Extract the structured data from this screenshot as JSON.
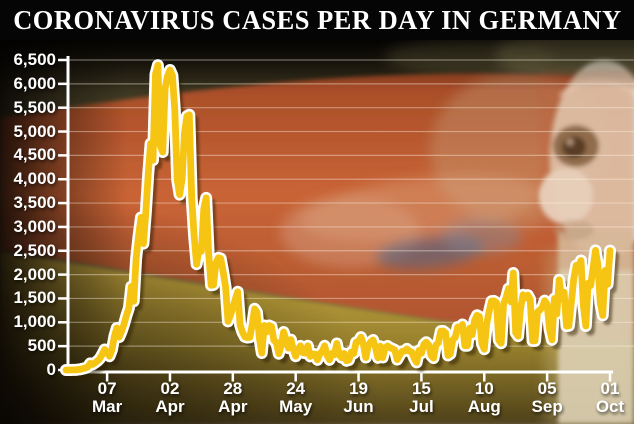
{
  "title": "CORONAVIRUS CASES PER DAY IN GERMANY",
  "colors": {
    "title_bg": "#050505",
    "title_text": "#FFFFFF",
    "line": "#F6C513",
    "line_outline": "#FFFFFF",
    "line_shadow": "#2B1A06",
    "axis": "#FFFFFF",
    "grid": "rgba(255,246,230,0.4)",
    "flag_black_band": "#4A4229",
    "flag_red_band": "#C05A30",
    "flag_gold_band": "#C3A33C"
  },
  "chart_data": {
    "type": "line",
    "title": "Coronavirus cases per day in Germany",
    "xlabel": "",
    "ylabel": "",
    "ylim": [
      0,
      6500
    ],
    "y_tick_step": 500,
    "grid": true,
    "y_tick_labels": [
      "0",
      "500",
      "1,000",
      "1,500",
      "2,000",
      "2,500",
      "3,000",
      "3,500",
      "4,000",
      "4,500",
      "5,000",
      "5,500",
      "6,000",
      "6,500"
    ],
    "x_ticks": [
      {
        "day": "07",
        "month": "Mar",
        "index": 17
      },
      {
        "day": "02",
        "month": "Apr",
        "index": 43
      },
      {
        "day": "28",
        "month": "Apr",
        "index": 69
      },
      {
        "day": "24",
        "month": "May",
        "index": 95
      },
      {
        "day": "19",
        "month": "Jun",
        "index": 121
      },
      {
        "day": "15",
        "month": "Jul",
        "index": 147
      },
      {
        "day": "10",
        "month": "Aug",
        "index": 173
      },
      {
        "day": "05",
        "month": "Sep",
        "index": 199
      },
      {
        "day": "01",
        "month": "Oct",
        "index": 225
      }
    ],
    "tick_spacing_days": 26,
    "series": [
      {
        "name": "daily_new_cases",
        "color": "#F6C513",
        "values": [
          0,
          0,
          0,
          2,
          2,
          10,
          14,
          29,
          39,
          66,
          138,
          117,
          150,
          188,
          240,
          330,
          430,
          380,
          290,
          420,
          706,
          880,
          690,
          810,
          960,
          1140,
          1300,
          1750,
          1440,
          2330,
          2800,
          3200,
          2650,
          3300,
          4100,
          4750,
          4400,
          6200,
          6390,
          4700,
          4570,
          5900,
          6160,
          6290,
          6174,
          5453,
          3990,
          3677,
          4003,
          4974,
          5323,
          5350,
          3600,
          2821,
          2218,
          2537,
          2486,
          3380,
          3609,
          2458,
          1775,
          1785,
          2237,
          2352,
          2337,
          2055,
          1737,
          1018,
          1144,
          1304,
          1478,
          1639,
          945,
          793,
          697,
          679,
          685,
          947,
          1284,
          1209,
          667,
          357,
          933,
          798,
          933,
          913,
          620,
          583,
          342,
          513,
          797,
          639,
          460,
          638,
          431,
          289,
          432,
          506,
          362,
          353,
          507,
          286,
          333,
          333,
          213,
          342,
          394,
          507,
          301,
          214,
          350,
          318,
          555,
          318,
          258,
          348,
          192,
          210,
          378,
          345,
          580,
          601,
          687,
          537,
          262,
          503,
          587,
          630,
          477,
          256,
          498,
          262,
          466,
          503,
          466,
          446,
          422,
          219,
          312,
          390,
          397,
          442,
          395,
          378,
          248,
          159,
          412,
          351,
          534,
          583,
          529,
          305,
          249,
          522,
          569,
          815,
          818,
          781,
          305,
          340,
          633,
          684,
          902,
          870,
          955,
          509,
          509,
          879,
          741,
          1045,
          1147,
          1122,
          555,
          436,
          966,
          1226,
          1445,
          1449,
          1415,
          625,
          561,
          1390,
          1510,
          1707,
          1427,
          2034,
          782,
          711,
          1278,
          1576,
          1507,
          1571,
          1479,
          610,
          611,
          1218,
          1256,
          1311,
          1453,
          1378,
          847,
          633,
          1499,
          1176,
          1892,
          1484,
          1630,
          920,
          927,
          1407,
          1901,
          2194,
          2179,
          2297,
          1345,
          922,
          1821,
          1769,
          2143,
          2507,
          2207,
          1411,
          1144,
          2089,
          1798,
          2503
        ]
      }
    ]
  }
}
